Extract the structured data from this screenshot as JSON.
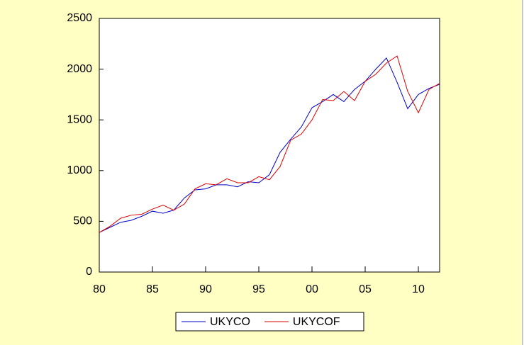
{
  "chart_data": {
    "type": "line",
    "x": [
      1980,
      1981,
      1982,
      1983,
      1984,
      1985,
      1986,
      1987,
      1988,
      1989,
      1990,
      1991,
      1992,
      1993,
      1994,
      1995,
      1996,
      1997,
      1998,
      1999,
      2000,
      2001,
      2002,
      2003,
      2004,
      2005,
      2006,
      2007,
      2008,
      2009,
      2010,
      2011,
      2012
    ],
    "series": [
      {
        "name": "UKYCO",
        "color": "#0000cc",
        "values": [
          390,
          440,
          490,
          510,
          550,
          600,
          580,
          610,
          730,
          810,
          820,
          860,
          860,
          840,
          890,
          880,
          960,
          1180,
          1310,
          1430,
          1620,
          1680,
          1750,
          1680,
          1800,
          1880,
          2000,
          2110,
          1870,
          1610,
          1750,
          1810,
          1850
        ]
      },
      {
        "name": "UKYCOF",
        "color": "#dd0000",
        "values": [
          390,
          450,
          530,
          560,
          570,
          620,
          660,
          610,
          670,
          820,
          870,
          860,
          920,
          880,
          880,
          940,
          910,
          1040,
          1300,
          1360,
          1500,
          1700,
          1690,
          1780,
          1690,
          1880,
          1950,
          2060,
          2130,
          1780,
          1570,
          1800,
          1860
        ]
      }
    ],
    "xlim": [
      1980,
      2012
    ],
    "xticks": [
      {
        "value": 1980,
        "label": "80"
      },
      {
        "value": 1985,
        "label": "85"
      },
      {
        "value": 1990,
        "label": "90"
      },
      {
        "value": 1995,
        "label": "95"
      },
      {
        "value": 2000,
        "label": "00"
      },
      {
        "value": 2005,
        "label": "05"
      },
      {
        "value": 2010,
        "label": "10"
      }
    ],
    "ylim": [
      0,
      2500
    ],
    "yticks": [
      0,
      500,
      1000,
      1500,
      2000,
      2500
    ],
    "legend": "bottom"
  }
}
